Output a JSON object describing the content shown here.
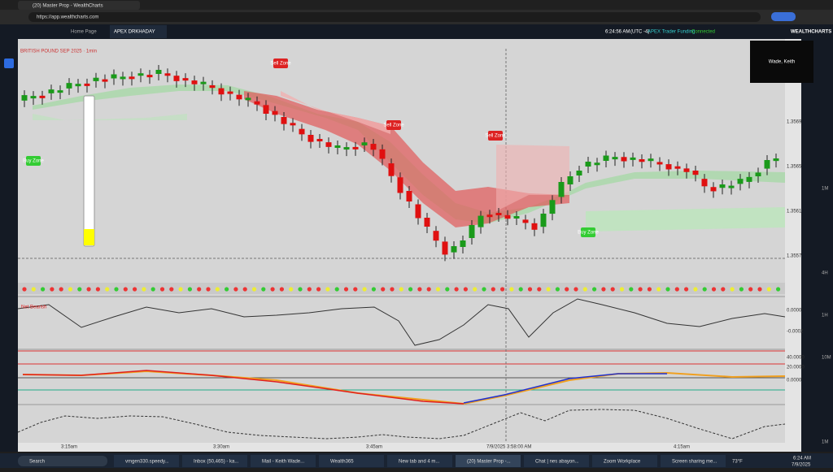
{
  "browser": {
    "tab_title": "(20) Master Prop - WealthCharts",
    "url": "https://app.wealthcharts.com"
  },
  "app": {
    "tabs": [
      "Home Page",
      "APEX DRKHADAY"
    ],
    "clock": "6:24:56 AM",
    "timezone": "(UTC -4)",
    "broker": "APEX Trader Funding",
    "status": "Connected",
    "brand": "WEALTHCHARTS",
    "user_box": "Wade, Keith"
  },
  "chart": {
    "symbol": "BRITISH POUND SEP 2025 · 1min",
    "sell_zone": "Sell Zone",
    "buy_zone": "Buy Zone",
    "indicator_label": "Net Bearish",
    "price_labels": [
      "1.3569",
      "1.3565",
      "1.3561",
      "1.3557"
    ],
    "pane_labels": [
      "0.0000",
      "-0.0002",
      "40.0000",
      "20.0000",
      "0.0000"
    ],
    "time_labels": [
      "3:15am",
      "3:30am",
      "3:45am",
      "7/9/2025 3:58:00 AM",
      "4:15am"
    ],
    "side_labels": [
      "1M",
      "4H",
      "1H",
      "10M",
      "1M"
    ]
  },
  "taskbar": {
    "search": "Search",
    "items": [
      "vmgen330.speedy...",
      "Inbox (50,465) - ka...",
      "Mail - Keith Wade...",
      "Wealth365",
      "New tab and 4 m...",
      "(20) Master Prop -...",
      "Chat | nes abayon...",
      "Zoom Workplace",
      "Screen sharing me..."
    ],
    "weather": "73°F",
    "time": "6:24 AM",
    "date": "7/9/2025"
  }
}
